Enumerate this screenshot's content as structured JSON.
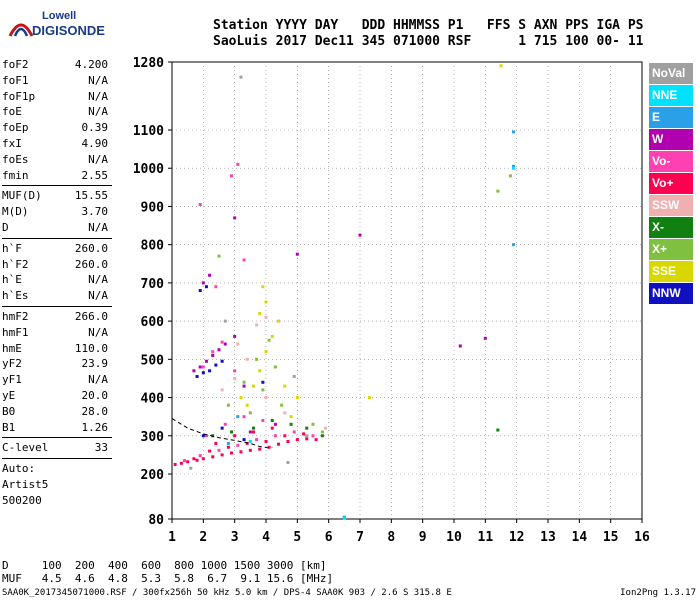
{
  "logo": {
    "top": "Lowell",
    "bottom": "DIGISONDE"
  },
  "header": {
    "line1": "Station YYYY DAY   DDD HHMMSS P1   FFS S AXN PPS IGA PS",
    "line2": "SaoLuis 2017 Dec11 345 071000 RSF      1 715 100 00- 11"
  },
  "params": [
    {
      "group": 1,
      "label": "foF2",
      "value": "4.200"
    },
    {
      "group": 1,
      "label": "foF1",
      "value": "N/A"
    },
    {
      "group": 1,
      "label": "foF1p",
      "value": "N/A"
    },
    {
      "group": 1,
      "label": "foE",
      "value": "N/A"
    },
    {
      "group": 1,
      "label": "foEp",
      "value": "0.39"
    },
    {
      "group": 1,
      "label": "fxI",
      "value": "4.90"
    },
    {
      "group": 1,
      "label": "foEs",
      "value": "N/A"
    },
    {
      "group": 1,
      "label": "fmin",
      "value": "2.55"
    },
    {
      "group": 2,
      "label": "MUF(D)",
      "value": "15.55"
    },
    {
      "group": 2,
      "label": "M(D)",
      "value": "3.70"
    },
    {
      "group": 2,
      "label": "D",
      "value": "N/A"
    },
    {
      "group": 3,
      "label": "h`F",
      "value": "260.0"
    },
    {
      "group": 3,
      "label": "h`F2",
      "value": "260.0"
    },
    {
      "group": 3,
      "label": "h`E",
      "value": "N/A"
    },
    {
      "group": 3,
      "label": "h`Es",
      "value": "N/A"
    },
    {
      "group": 4,
      "label": "hmF2",
      "value": "266.0"
    },
    {
      "group": 4,
      "label": "hmF1",
      "value": "N/A"
    },
    {
      "group": 4,
      "label": "hmE",
      "value": "110.0"
    },
    {
      "group": 4,
      "label": "yF2",
      "value": "23.9"
    },
    {
      "group": 4,
      "label": "yF1",
      "value": "N/A"
    },
    {
      "group": 4,
      "label": "yE",
      "value": "20.0"
    },
    {
      "group": 4,
      "label": "B0",
      "value": "28.0"
    },
    {
      "group": 4,
      "label": "B1",
      "value": "1.26"
    },
    {
      "group": 5,
      "label": "C-level",
      "value": "33"
    }
  ],
  "autoscaling": {
    "line1": "Auto:",
    "line2": "Artist5",
    "line3": "500200"
  },
  "legend": [
    {
      "label": "NoVal",
      "color": "#a0a0a0"
    },
    {
      "label": "NNE",
      "color": "#00e0ff"
    },
    {
      "label": "E",
      "color": "#2aa0e8"
    },
    {
      "label": "W",
      "color": "#b000b0"
    },
    {
      "label": "Vo-",
      "color": "#ff40b0"
    },
    {
      "label": "Vo+",
      "color": "#ff0050"
    },
    {
      "label": "SSW",
      "color": "#f0b0b0"
    },
    {
      "label": "X-",
      "color": "#108010"
    },
    {
      "label": "X+",
      "color": "#80c040"
    },
    {
      "label": "SSE",
      "color": "#d8d800"
    },
    {
      "label": "NNW",
      "color": "#1010c0"
    }
  ],
  "muf_table": {
    "line1": "D     100  200  400  600  800 1000 1500 3000 [km]",
    "line2": "MUF   4.5  4.6  4.8  5.3  5.8  6.7  9.1 15.6 [MHz]"
  },
  "footer": {
    "left": "SAA0K_2017345071000.RSF / 300fx256h 50 kHz 5.0 km / DPS-4 SAA0K 903 / 2.6 S 315.8 E",
    "right": "Ion2Png 1.3.17"
  },
  "chart_data": {
    "type": "scatter",
    "title": "",
    "xlabel": "",
    "ylabel": "",
    "xlim": [
      1,
      16
    ],
    "ylim": [
      80,
      1280
    ],
    "x_ticks": [
      1,
      2,
      3,
      4,
      5,
      6,
      7,
      8,
      9,
      10,
      11,
      12,
      13,
      14,
      15,
      16
    ],
    "y_ticks": [
      80,
      200,
      300,
      400,
      500,
      600,
      700,
      800,
      900,
      1000,
      1100,
      1280
    ],
    "grid": true,
    "series": [
      {
        "name": "Vo+",
        "color": "#ff0050",
        "points": [
          [
            1.1,
            225
          ],
          [
            1.3,
            228
          ],
          [
            1.5,
            232
          ],
          [
            1.8,
            236
          ],
          [
            2.0,
            240
          ],
          [
            2.3,
            245
          ],
          [
            2.6,
            250
          ],
          [
            2.9,
            255
          ],
          [
            3.2,
            258
          ],
          [
            3.5,
            262
          ],
          [
            3.8,
            265
          ],
          [
            4.1,
            270
          ],
          [
            4.4,
            278
          ],
          [
            4.7,
            285
          ],
          [
            5.0,
            290
          ],
          [
            5.3,
            292
          ],
          [
            5.6,
            290
          ],
          [
            2.2,
            260
          ],
          [
            2.8,
            270
          ],
          [
            3.4,
            280
          ],
          [
            4.0,
            285
          ],
          [
            4.6,
            300
          ],
          [
            3.0,
            300
          ],
          [
            3.6,
            310
          ],
          [
            4.2,
            320
          ],
          [
            2.4,
            280
          ],
          [
            1.7,
            240
          ],
          [
            5.2,
            305
          ]
        ]
      },
      {
        "name": "Vo-",
        "color": "#ff40b0",
        "points": [
          [
            1.4,
            235
          ],
          [
            1.9,
            248
          ],
          [
            2.5,
            262
          ],
          [
            3.1,
            275
          ],
          [
            3.7,
            290
          ],
          [
            4.3,
            300
          ],
          [
            4.9,
            310
          ],
          [
            5.5,
            300
          ],
          [
            2.1,
            300
          ],
          [
            2.7,
            330
          ],
          [
            3.3,
            350
          ],
          [
            3.9,
            340
          ],
          [
            2.3,
            520
          ],
          [
            2.6,
            545
          ],
          [
            3.0,
            470
          ],
          [
            2.0,
            480
          ],
          [
            2.4,
            690
          ],
          [
            3.3,
            760
          ],
          [
            2.9,
            980
          ],
          [
            3.1,
            1010
          ],
          [
            1.9,
            905
          ]
        ]
      },
      {
        "name": "W",
        "color": "#b000b0",
        "points": [
          [
            1.7,
            470
          ],
          [
            1.9,
            480
          ],
          [
            2.1,
            495
          ],
          [
            2.3,
            510
          ],
          [
            2.5,
            525
          ],
          [
            2.7,
            540
          ],
          [
            3.0,
            560
          ],
          [
            3.3,
            430
          ],
          [
            2.0,
            700
          ],
          [
            2.2,
            720
          ],
          [
            3.0,
            870
          ],
          [
            7.0,
            825
          ],
          [
            5.0,
            775
          ],
          [
            4.3,
            330
          ],
          [
            3.5,
            310
          ],
          [
            11.0,
            555
          ],
          [
            10.2,
            535
          ]
        ]
      },
      {
        "name": "NNW",
        "color": "#1010c0",
        "points": [
          [
            1.8,
            455
          ],
          [
            2.0,
            465
          ],
          [
            2.2,
            470
          ],
          [
            2.4,
            485
          ],
          [
            2.6,
            495
          ],
          [
            2.0,
            300
          ],
          [
            2.6,
            320
          ],
          [
            3.3,
            290
          ],
          [
            1.9,
            680
          ],
          [
            2.1,
            690
          ],
          [
            3.9,
            440
          ]
        ]
      },
      {
        "name": "SSE",
        "color": "#d8d800",
        "points": [
          [
            3.4,
            380
          ],
          [
            3.6,
            430
          ],
          [
            3.8,
            470
          ],
          [
            4.0,
            520
          ],
          [
            4.2,
            560
          ],
          [
            4.4,
            600
          ],
          [
            4.0,
            650
          ],
          [
            3.8,
            620
          ],
          [
            4.6,
            430
          ],
          [
            3.2,
            400
          ],
          [
            5.0,
            400
          ],
          [
            4.8,
            350
          ],
          [
            7.3,
            400
          ],
          [
            11.5,
            1270
          ],
          [
            3.9,
            690
          ]
        ]
      },
      {
        "name": "X+",
        "color": "#80c040",
        "points": [
          [
            3.5,
            360
          ],
          [
            3.9,
            420
          ],
          [
            4.3,
            480
          ],
          [
            4.1,
            550
          ],
          [
            3.7,
            500
          ],
          [
            3.3,
            440
          ],
          [
            4.5,
            380
          ],
          [
            5.5,
            330
          ],
          [
            5.8,
            310
          ],
          [
            2.8,
            380
          ],
          [
            2.5,
            770
          ],
          [
            11.8,
            980
          ],
          [
            11.4,
            940
          ]
        ]
      },
      {
        "name": "X-",
        "color": "#108010",
        "points": [
          [
            3.6,
            320
          ],
          [
            4.2,
            340
          ],
          [
            4.8,
            330
          ],
          [
            5.3,
            320
          ],
          [
            5.8,
            300
          ],
          [
            2.9,
            310
          ],
          [
            2.3,
            300
          ],
          [
            11.4,
            315
          ]
        ]
      },
      {
        "name": "SSW",
        "color": "#f0b0b0",
        "points": [
          [
            2.6,
            420
          ],
          [
            3.0,
            450
          ],
          [
            3.4,
            500
          ],
          [
            4.0,
            400
          ],
          [
            4.6,
            360
          ],
          [
            5.9,
            320
          ],
          [
            3.7,
            590
          ],
          [
            4.0,
            610
          ],
          [
            3.1,
            540
          ]
        ]
      },
      {
        "name": "E",
        "color": "#2aa0e8",
        "points": [
          [
            11.9,
            1095
          ],
          [
            11.9,
            1005
          ],
          [
            11.9,
            800
          ],
          [
            6.5,
            85
          ],
          [
            3.1,
            350
          ],
          [
            2.8,
            280
          ]
        ]
      },
      {
        "name": "NNE",
        "color": "#00e0ff",
        "points": [
          [
            11.9,
            1000
          ],
          [
            3.5,
            285
          ],
          [
            6.5,
            82
          ]
        ]
      },
      {
        "name": "NoVal",
        "color": "#a0a0a0",
        "points": [
          [
            3.2,
            1240
          ],
          [
            5.3,
            300
          ],
          [
            4.9,
            455
          ],
          [
            2.7,
            600
          ],
          [
            1.6,
            215
          ],
          [
            4.7,
            230
          ]
        ]
      }
    ],
    "trace": {
      "color": "#000000",
      "points": [
        [
          1.0,
          345
        ],
        [
          1.5,
          320
        ],
        [
          2.0,
          305
        ],
        [
          2.5,
          295
        ],
        [
          3.0,
          288
        ],
        [
          3.5,
          280
        ],
        [
          3.8,
          272
        ],
        [
          4.1,
          268
        ],
        [
          4.2,
          270
        ]
      ]
    }
  }
}
